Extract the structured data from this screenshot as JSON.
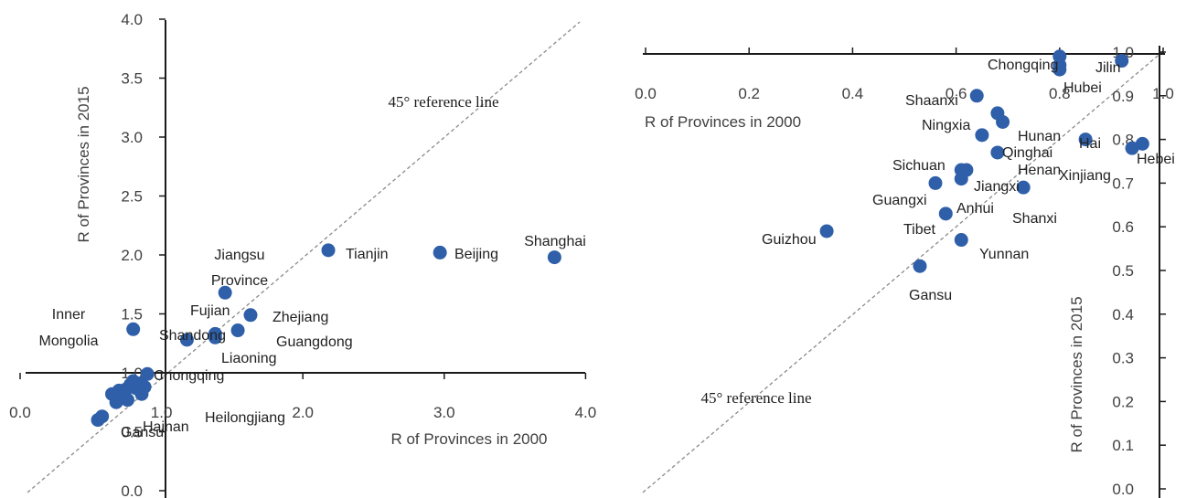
{
  "chart_data": [
    {
      "type": "scatter",
      "xlabel": "R of Provinces in 2000",
      "ylabel": "R  of Provinces in 2015",
      "xlim": [
        0.0,
        4.0
      ],
      "ylim": [
        0.0,
        4.0
      ],
      "x_ticks": [
        "0.0",
        "1.0",
        "2.0",
        "3.0",
        "4.0"
      ],
      "y_ticks": [
        "0.0",
        "0.5",
        "1.0",
        "1.5",
        "2.0",
        "2.5",
        "3.0",
        "3.5",
        "4.0"
      ],
      "reference_line": {
        "label": "45° reference line",
        "style": "dashed"
      },
      "marker_color": "#2e5fa8",
      "points": [
        {
          "label": "Shanghai",
          "x": 3.78,
          "y": 1.98
        },
        {
          "label": "Beijing",
          "x": 2.97,
          "y": 2.02
        },
        {
          "label": "Tianjin",
          "x": 2.18,
          "y": 2.04
        },
        {
          "label": "Jiangsu Province",
          "x": 1.45,
          "y": 1.68
        },
        {
          "label": "Zhejiang",
          "x": 1.63,
          "y": 1.49
        },
        {
          "label": "Fujian",
          "x": 1.38,
          "y": 1.33
        },
        {
          "label": "Guangdong",
          "x": 1.54,
          "y": 1.36
        },
        {
          "label": "Shandong",
          "x": 1.18,
          "y": 1.28
        },
        {
          "label": "Liaoning",
          "x": 1.38,
          "y": 1.3
        },
        {
          "label": "Inner Mongolia",
          "x": 0.8,
          "y": 1.37
        },
        {
          "label": "Chongqing",
          "x": 0.9,
          "y": 0.99
        },
        {
          "label": "Heilongjiang",
          "x": 0.86,
          "y": 0.82
        },
        {
          "label": "Gansu",
          "x": 0.55,
          "y": 0.6
        },
        {
          "label": "Hainan",
          "x": 0.58,
          "y": 0.63
        },
        {
          "label": "",
          "x": 0.65,
          "y": 0.82
        },
        {
          "label": "",
          "x": 0.7,
          "y": 0.85
        },
        {
          "label": "",
          "x": 0.72,
          "y": 0.8
        },
        {
          "label": "",
          "x": 0.75,
          "y": 0.86
        },
        {
          "label": "",
          "x": 0.78,
          "y": 0.9
        },
        {
          "label": "",
          "x": 0.8,
          "y": 0.93
        },
        {
          "label": "",
          "x": 0.82,
          "y": 0.87
        },
        {
          "label": "",
          "x": 0.84,
          "y": 0.91
        },
        {
          "label": "",
          "x": 0.88,
          "y": 0.88
        },
        {
          "label": "",
          "x": 0.76,
          "y": 0.77
        },
        {
          "label": "",
          "x": 0.68,
          "y": 0.75
        }
      ]
    },
    {
      "type": "scatter",
      "xlabel": "R of Provinces in 2000",
      "ylabel": "R of Provinces in 2015",
      "xlim": [
        0.0,
        1.0
      ],
      "ylim": [
        0.0,
        1.0
      ],
      "x_ticks": [
        "0.0",
        "0.2",
        "0.4",
        "0.6",
        "0.8",
        "1.0"
      ],
      "y_ticks": [
        "0.0",
        "0.1",
        "0.2",
        "0.3",
        "0.4",
        "0.5",
        "0.6",
        "0.7",
        "0.8",
        "0.9",
        "1.0"
      ],
      "reference_line": {
        "label": "45° reference line",
        "style": "dashed"
      },
      "marker_color": "#2e5fa8",
      "points": [
        {
          "label": "Chongqing",
          "x": 0.8,
          "y": 0.99
        },
        {
          "label": "",
          "x": 0.8,
          "y": 0.97
        },
        {
          "label": "Jilin",
          "x": 0.92,
          "y": 0.98
        },
        {
          "label": "Hubei",
          "x": 0.8,
          "y": 0.96
        },
        {
          "label": "Shaanxi",
          "x": 0.64,
          "y": 0.9
        },
        {
          "label": "Ningxia",
          "x": 0.68,
          "y": 0.86
        },
        {
          "label": "Hunan",
          "x": 0.69,
          "y": 0.84
        },
        {
          "label": "Qinghai",
          "x": 0.65,
          "y": 0.81
        },
        {
          "label": "Hai",
          "x": 0.85,
          "y": 0.8
        },
        {
          "label": "Hebei",
          "x": 0.96,
          "y": 0.79
        },
        {
          "label": "Xinjiang",
          "x": 0.94,
          "y": 0.78
        },
        {
          "label": "Henan",
          "x": 0.68,
          "y": 0.77
        },
        {
          "label": "Sichuan",
          "x": 0.61,
          "y": 0.73
        },
        {
          "label": "Jiangxi",
          "x": 0.62,
          "y": 0.73
        },
        {
          "label": "Guangxi",
          "x": 0.56,
          "y": 0.7
        },
        {
          "label": "Anhui",
          "x": 0.61,
          "y": 0.71
        },
        {
          "label": "Shanxi",
          "x": 0.73,
          "y": 0.69
        },
        {
          "label": "Tibet",
          "x": 0.58,
          "y": 0.63
        },
        {
          "label": "Guizhou",
          "x": 0.35,
          "y": 0.59
        },
        {
          "label": "Yunnan",
          "x": 0.61,
          "y": 0.57
        },
        {
          "label": "Gansu",
          "x": 0.53,
          "y": 0.51
        }
      ]
    }
  ]
}
